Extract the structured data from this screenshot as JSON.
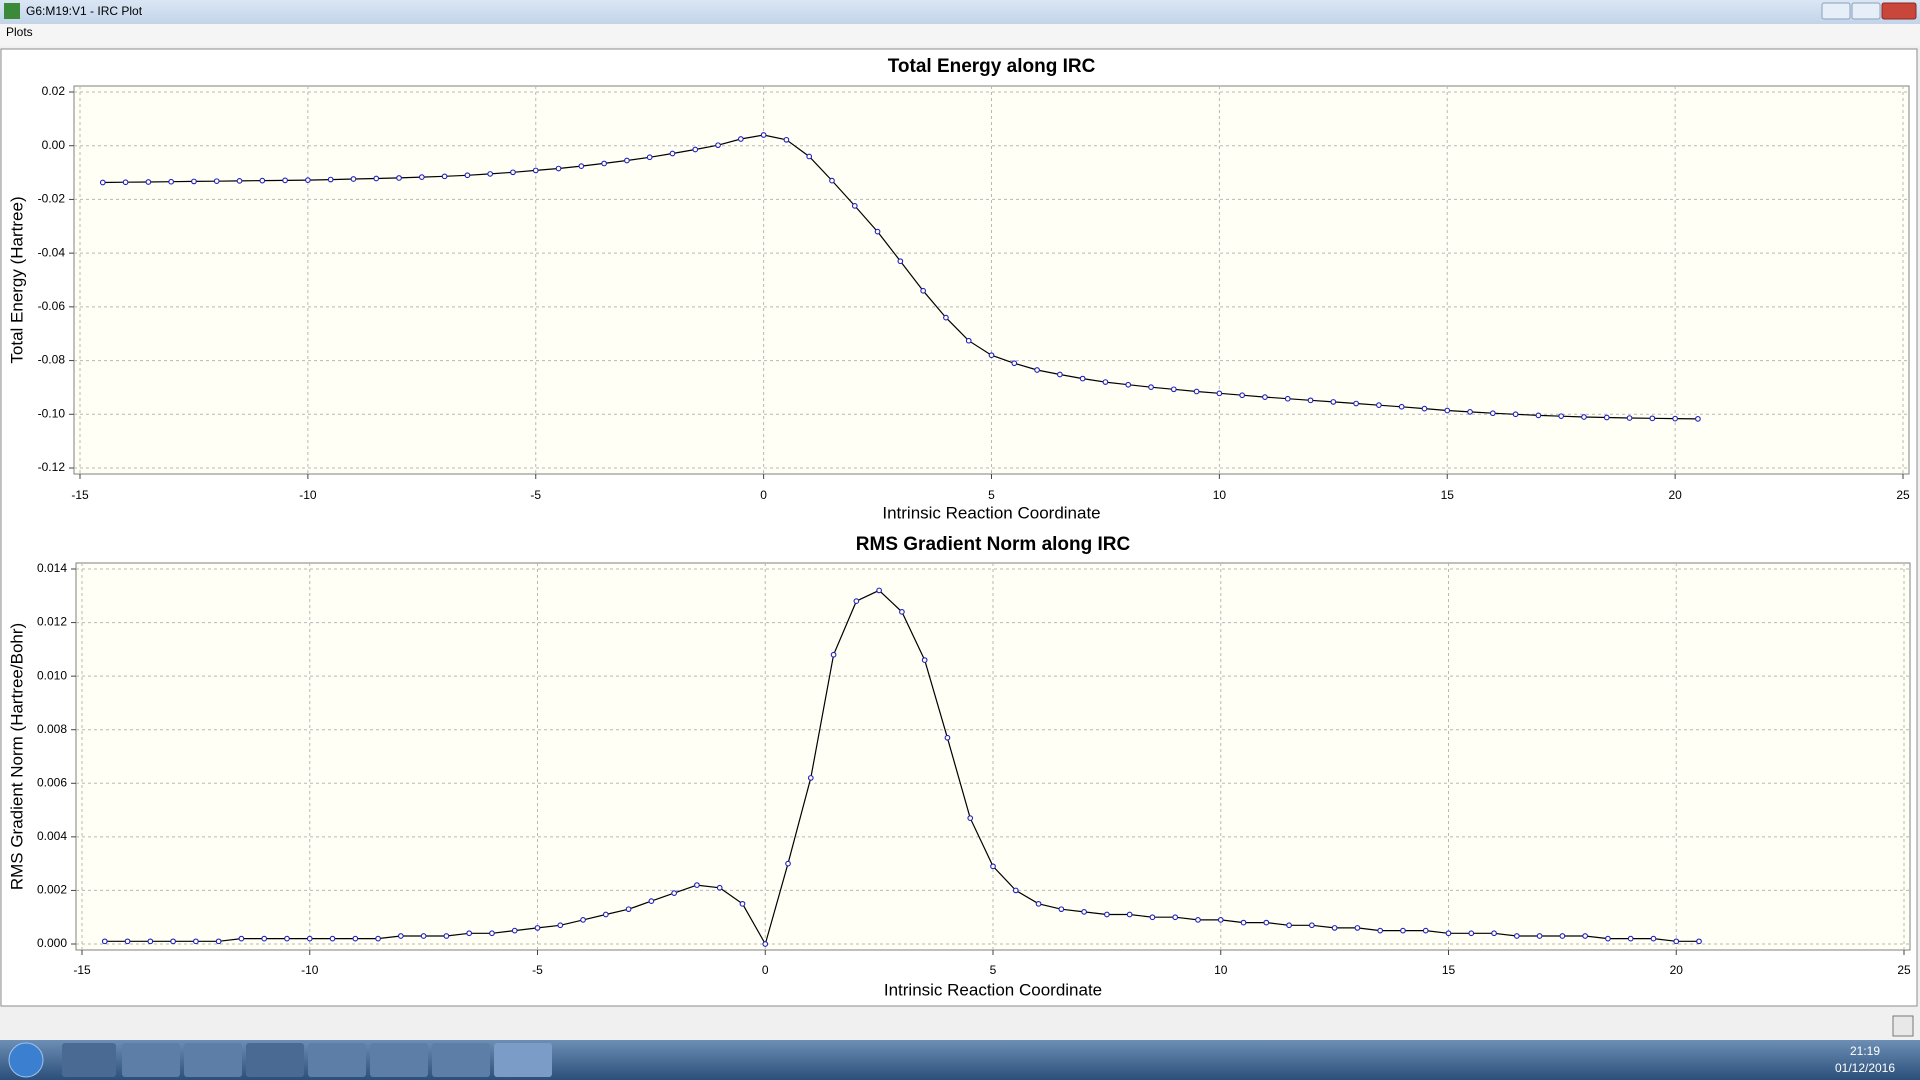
{
  "window": {
    "title": "G6:M19:V1 - IRC Plot"
  },
  "menu": [
    "Plots"
  ],
  "taskbar": {
    "time": "21:19",
    "date": "01/12/2016"
  },
  "chart_data": [
    {
      "type": "line",
      "title": "Total Energy along IRC",
      "x_label": "Intrinsic Reaction Coordinate",
      "y_label": "Total Energy (Hartree)",
      "line_color": "#000000",
      "marker_color": "#2020c0",
      "grid": true,
      "xlim": [
        -15,
        25
      ],
      "xticks": [
        -15,
        -10,
        -5,
        0,
        5,
        10,
        15,
        20,
        25
      ],
      "ylim": [
        -0.12,
        0.02
      ],
      "yticks": [
        {
          "value": 0.02,
          "label": "0.02"
        },
        {
          "value": 0,
          "label": "0.00"
        },
        {
          "value": -0.02,
          "label": "-0.02"
        },
        {
          "value": -0.04,
          "label": "-0.04"
        },
        {
          "value": -0.06,
          "label": "-0.06"
        },
        {
          "value": -0.08,
          "label": "-0.08"
        },
        {
          "value": -0.1,
          "label": "-0.10"
        },
        {
          "value": -0.12,
          "label": "-0.12"
        }
      ],
      "x": [
        -14.5,
        -14,
        -13.5,
        -13,
        -12.5,
        -12,
        -11.5,
        -11,
        -10.5,
        -10,
        -9.5,
        -9,
        -8.5,
        -8,
        -7.5,
        -7,
        -6.5,
        -6,
        -5.5,
        -5,
        -4.5,
        -4,
        -3.5,
        -3,
        -2.5,
        -2,
        -1.5,
        -1,
        -0.5,
        0,
        0.5,
        1,
        1.5,
        2,
        2.5,
        3,
        3.5,
        4,
        4.5,
        5,
        5.5,
        6,
        6.5,
        7,
        7.5,
        8,
        8.5,
        9,
        9.5,
        10,
        10.5,
        11,
        11.5,
        12,
        12.5,
        13,
        13.5,
        14,
        14.5,
        15,
        15.5,
        16,
        16.5,
        17,
        17.5,
        18,
        18.5,
        19,
        19.5,
        20,
        20.5
      ],
      "values": [
        -0.0137,
        -0.0136,
        -0.0135,
        -0.0134,
        -0.0133,
        -0.0132,
        -0.0131,
        -0.013,
        -0.0129,
        -0.0128,
        -0.0126,
        -0.0124,
        -0.0122,
        -0.012,
        -0.0117,
        -0.0114,
        -0.011,
        -0.0105,
        -0.0099,
        -0.0092,
        -0.0085,
        -0.0076,
        -0.0066,
        -0.0055,
        -0.0043,
        -0.0029,
        -0.0014,
        0.0002,
        0.0025,
        0.004,
        0.0022,
        -0.004,
        -0.013,
        -0.0224,
        -0.032,
        -0.043,
        -0.054,
        -0.064,
        -0.0726,
        -0.078,
        -0.081,
        -0.0835,
        -0.0852,
        -0.0867,
        -0.088,
        -0.089,
        -0.0899,
        -0.0907,
        -0.0915,
        -0.0922,
        -0.0929,
        -0.0936,
        -0.0942,
        -0.0948,
        -0.0954,
        -0.096,
        -0.0966,
        -0.0972,
        -0.0979,
        -0.0986,
        -0.0991,
        -0.0996,
        -0.1,
        -0.1004,
        -0.1007,
        -0.101,
        -0.1012,
        -0.1014,
        -0.1015,
        -0.1016,
        -0.1017
      ]
    },
    {
      "type": "line",
      "title": "RMS Gradient Norm along IRC",
      "x_label": "Intrinsic Reaction Coordinate",
      "y_label": "RMS Gradient Norm (Hartree/Bohr)",
      "line_color": "#000000",
      "marker_color": "#2020c0",
      "grid": true,
      "xlim": [
        -15,
        25
      ],
      "xticks": [
        -15,
        -10,
        -5,
        0,
        5,
        10,
        15,
        20,
        25
      ],
      "ylim": [
        0,
        0.014
      ],
      "yticks": [
        {
          "value": 0,
          "label": "0.000"
        },
        {
          "value": 0.002,
          "label": "0.002"
        },
        {
          "value": 0.004,
          "label": "0.004"
        },
        {
          "value": 0.006,
          "label": "0.006"
        },
        {
          "value": 0.008,
          "label": "0.008"
        },
        {
          "value": 0.01,
          "label": "0.010"
        },
        {
          "value": 0.012,
          "label": "0.012"
        },
        {
          "value": 0.014,
          "label": "0.014"
        }
      ],
      "x": [
        -14.5,
        -14,
        -13.5,
        -13,
        -12.5,
        -12,
        -11.5,
        -11,
        -10.5,
        -10,
        -9.5,
        -9,
        -8.5,
        -8,
        -7.5,
        -7,
        -6.5,
        -6,
        -5.5,
        -5,
        -4.5,
        -4,
        -3.5,
        -3,
        -2.5,
        -2,
        -1.5,
        -1,
        -0.5,
        0,
        0.5,
        1,
        1.5,
        2,
        2.5,
        3,
        3.5,
        4,
        4.5,
        5,
        5.5,
        6,
        6.5,
        7,
        7.5,
        8,
        8.5,
        9,
        9.5,
        10,
        10.5,
        11,
        11.5,
        12,
        12.5,
        13,
        13.5,
        14,
        14.5,
        15,
        15.5,
        16,
        16.5,
        17,
        17.5,
        18,
        18.5,
        19,
        19.5,
        20,
        20.5
      ],
      "values": [
        0.0001,
        0.0001,
        0.0001,
        0.0001,
        0.0001,
        0.0001,
        0.0002,
        0.0002,
        0.0002,
        0.0002,
        0.0002,
        0.0002,
        0.0002,
        0.0003,
        0.0003,
        0.0003,
        0.0004,
        0.0004,
        0.0005,
        0.0006,
        0.0007,
        0.0009,
        0.0011,
        0.0013,
        0.0016,
        0.0019,
        0.0022,
        0.0021,
        0.0015,
        0,
        0.003,
        0.0062,
        0.0108,
        0.0128,
        0.0132,
        0.0124,
        0.0106,
        0.0077,
        0.0047,
        0.0029,
        0.002,
        0.0015,
        0.0013,
        0.0012,
        0.0011,
        0.0011,
        0.001,
        0.001,
        0.0009,
        0.0009,
        0.0008,
        0.0008,
        0.0007,
        0.0007,
        0.0006,
        0.0006,
        0.0005,
        0.0005,
        0.0005,
        0.0004,
        0.0004,
        0.0004,
        0.0003,
        0.0003,
        0.0003,
        0.0003,
        0.0002,
        0.0002,
        0.0002,
        0.0001,
        0.0001
      ]
    }
  ]
}
